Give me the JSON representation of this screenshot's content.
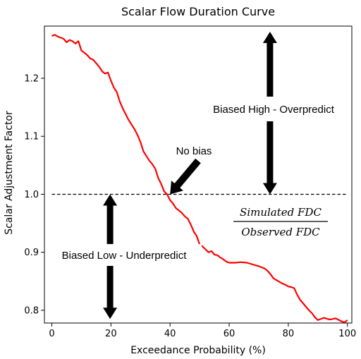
{
  "chart_data": {
    "type": "line",
    "title": "Scalar Flow Duration Curve",
    "xlabel": "Exceedance Probability (%)",
    "ylabel": "Scalar Adjustment Factor",
    "xlim": [
      -2.5,
      101.5
    ],
    "ylim": [
      0.778,
      1.29
    ],
    "xticks": [
      0,
      20,
      40,
      60,
      80,
      100
    ],
    "xtick_labels": [
      "0",
      "20",
      "40",
      "60",
      "80",
      "100"
    ],
    "yticks": [
      0.8,
      0.9,
      1.0,
      1.1,
      1.2
    ],
    "ytick_labels": [
      "0.8",
      "0.9",
      "1.0",
      "1.1",
      "1.2"
    ],
    "grid": false,
    "series": [
      {
        "color": "#ff0000",
        "style": "solid",
        "x": [
          0,
          1,
          2,
          3,
          4,
          5,
          6,
          7,
          8,
          9,
          10,
          11,
          12,
          13,
          14,
          15,
          16,
          17,
          18,
          19,
          20,
          21,
          22,
          23,
          24,
          25,
          26,
          27,
          28,
          29,
          30,
          31,
          32,
          33,
          34,
          35,
          36,
          37,
          38,
          39,
          40,
          41,
          42,
          43,
          44,
          45,
          46,
          47,
          48,
          49,
          50,
          51,
          52,
          53,
          54,
          55,
          56,
          57,
          58,
          59,
          60,
          62,
          64,
          66,
          68,
          70,
          72,
          73,
          74,
          75,
          76,
          77,
          78,
          79,
          80,
          81,
          82,
          83,
          84,
          85,
          86,
          87,
          88,
          89,
          90,
          92,
          94,
          96,
          98,
          99,
          100
        ],
        "y": [
          1.273,
          1.275,
          1.272,
          1.27,
          1.268,
          1.262,
          1.266,
          1.264,
          1.26,
          1.264,
          1.248,
          1.244,
          1.24,
          1.234,
          1.232,
          1.226,
          1.22,
          1.212,
          1.208,
          1.21,
          1.196,
          1.184,
          1.176,
          1.16,
          1.148,
          1.138,
          1.128,
          1.12,
          1.112,
          1.102,
          1.09,
          1.074,
          1.066,
          1.058,
          1.052,
          1.044,
          1.028,
          1.018,
          1.005,
          1.0,
          0.99,
          0.984,
          0.976,
          0.972,
          0.968,
          0.962,
          0.958,
          0.948,
          0.936,
          0.928,
          0.914,
          0.91,
          0.905,
          0.9,
          0.902,
          0.896,
          0.895,
          0.891,
          0.888,
          0.884,
          0.882,
          0.882,
          0.883,
          0.882,
          0.879,
          0.876,
          0.872,
          0.868,
          0.862,
          0.855,
          0.852,
          0.849,
          0.846,
          0.844,
          0.841,
          0.84,
          0.838,
          0.827,
          0.818,
          0.812,
          0.806,
          0.8,
          0.795,
          0.788,
          0.783,
          0.787,
          0.784,
          0.786,
          0.781,
          0.779,
          0.783
        ]
      },
      {
        "color": "#000000",
        "style": "dashed",
        "x": [
          0,
          100
        ],
        "y": [
          1.0,
          1.0
        ]
      }
    ],
    "annotations": [
      {
        "text": "No bias"
      },
      {
        "text": "Biased High - Overpredict"
      },
      {
        "text": "Biased Low - Underpredict"
      },
      {
        "numerator": "Simulated FDC",
        "denominator": "Observed FDC"
      }
    ]
  }
}
